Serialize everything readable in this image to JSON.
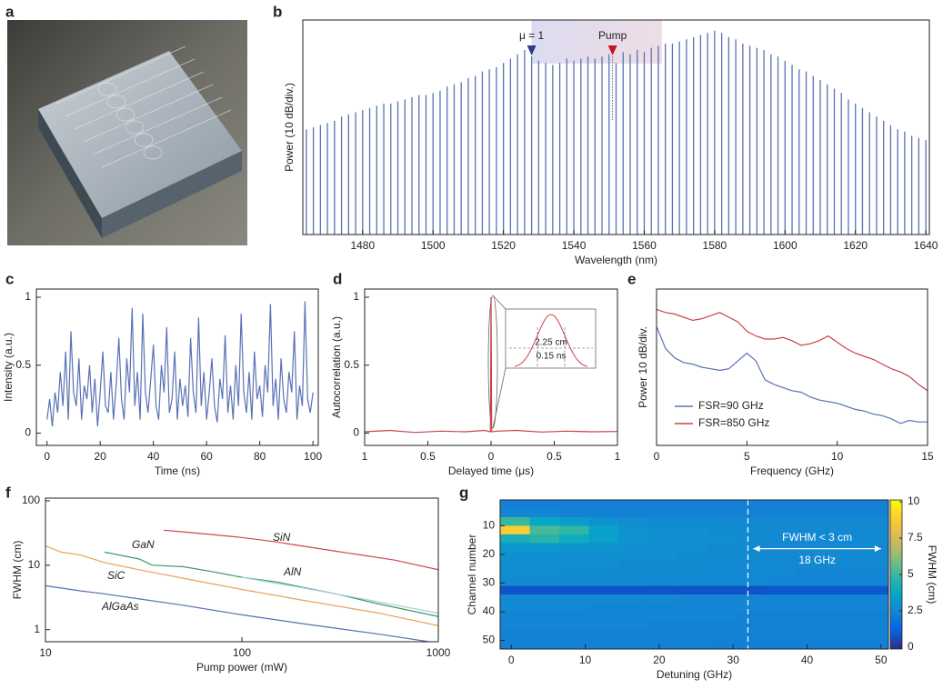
{
  "panel_a": {
    "panel": "a"
  },
  "chart_data": [
    {
      "type": "comb",
      "panel": "b",
      "xlabel": "Wavelength (nm)",
      "ylabel": "Power (10 dB/div.)",
      "color": "#5a72b5",
      "xlim": [
        1463,
        1641
      ],
      "ylim": [
        0,
        10
      ],
      "xticks": [
        1480,
        1500,
        1520,
        1540,
        1560,
        1580,
        1600,
        1620,
        1640
      ],
      "highlight": [
        1528,
        1565
      ],
      "markers": [
        {
          "label": "μ = 1",
          "x": 1528,
          "color": "#2b3990"
        },
        {
          "label": "Pump",
          "x": 1551,
          "color": "#c4161c"
        }
      ],
      "x": [
        1464,
        1466,
        1468,
        1470,
        1472,
        1474,
        1476,
        1478,
        1480,
        1482,
        1484,
        1486,
        1488,
        1490,
        1492,
        1494,
        1496,
        1498,
        1500,
        1502,
        1504,
        1506,
        1508,
        1510,
        1512,
        1514,
        1516,
        1518,
        1520,
        1522,
        1524,
        1526,
        1528,
        1530,
        1532,
        1534,
        1536,
        1538,
        1540,
        1542,
        1544,
        1546,
        1548,
        1550,
        1552,
        1554,
        1556,
        1558,
        1560,
        1562,
        1564,
        1566,
        1568,
        1570,
        1572,
        1574,
        1576,
        1578,
        1580,
        1582,
        1584,
        1586,
        1588,
        1590,
        1592,
        1594,
        1596,
        1598,
        1600,
        1602,
        1604,
        1606,
        1608,
        1610,
        1612,
        1614,
        1616,
        1618,
        1620,
        1622,
        1624,
        1626,
        1628,
        1630,
        1632,
        1634,
        1636,
        1638,
        1640
      ],
      "values": [
        4.9,
        5.0,
        5.1,
        5.2,
        5.3,
        5.5,
        5.6,
        5.7,
        5.8,
        5.9,
        6.0,
        6.1,
        6.1,
        6.2,
        6.3,
        6.4,
        6.5,
        6.5,
        6.6,
        6.7,
        6.9,
        7.0,
        7.1,
        7.3,
        7.4,
        7.6,
        7.7,
        7.8,
        8.0,
        8.2,
        8.4,
        8.6,
        8.3,
        8.1,
        8.0,
        7.9,
        8.0,
        8.2,
        8.1,
        8.2,
        8.3,
        8.2,
        8.3,
        8.4,
        8.0,
        8.5,
        8.4,
        8.6,
        8.5,
        8.7,
        8.8,
        8.9,
        8.9,
        9.0,
        9.1,
        9.2,
        9.3,
        9.4,
        9.5,
        9.4,
        9.2,
        9.1,
        8.9,
        8.8,
        8.7,
        8.6,
        8.4,
        8.3,
        8.1,
        7.9,
        7.7,
        7.6,
        7.4,
        7.2,
        7.0,
        6.8,
        6.6,
        6.3,
        6.1,
        5.9,
        5.7,
        5.5,
        5.3,
        5.1,
        4.9,
        4.8,
        4.6,
        4.5,
        4.4
      ]
    },
    {
      "type": "line",
      "panel": "c",
      "xlabel": "Time (ns)",
      "ylabel": "Intensity (a.u.)",
      "color": "#5a72b5",
      "xlim": [
        -4,
        102
      ],
      "ylim": [
        -0.09,
        1.06
      ],
      "xticks": [
        0,
        20,
        40,
        60,
        80,
        100
      ],
      "yticks": [
        0,
        0.5,
        1
      ],
      "x": [
        0,
        1,
        2,
        3,
        4,
        5,
        6,
        7,
        8,
        9,
        10,
        11,
        12,
        13,
        14,
        15,
        16,
        17,
        18,
        19,
        20,
        21,
        22,
        23,
        24,
        25,
        26,
        27,
        28,
        29,
        30,
        31,
        32,
        33,
        34,
        35,
        36,
        37,
        38,
        39,
        40,
        41,
        42,
        43,
        44,
        45,
        46,
        47,
        48,
        49,
        50,
        51,
        52,
        53,
        54,
        55,
        56,
        57,
        58,
        59,
        60,
        61,
        62,
        63,
        64,
        65,
        66,
        67,
        68,
        69,
        70,
        71,
        72,
        73,
        74,
        75,
        76,
        77,
        78,
        79,
        80,
        81,
        82,
        83,
        84,
        85,
        86,
        87,
        88,
        89,
        90,
        91,
        92,
        93,
        94,
        95,
        96,
        97,
        98,
        99,
        100
      ],
      "values": [
        0.1,
        0.25,
        0.05,
        0.3,
        0.15,
        0.45,
        0.2,
        0.6,
        0.1,
        0.75,
        0.3,
        0.2,
        0.55,
        0.1,
        0.35,
        0.25,
        0.5,
        0.15,
        0.4,
        0.05,
        0.3,
        0.6,
        0.2,
        0.15,
        0.45,
        0.1,
        0.35,
        0.7,
        0.25,
        0.1,
        0.55,
        0.3,
        0.92,
        0.2,
        0.45,
        0.1,
        0.88,
        0.3,
        0.15,
        0.4,
        0.65,
        0.2,
        0.1,
        0.5,
        0.3,
        0.78,
        0.15,
        0.25,
        0.6,
        0.1,
        0.4,
        0.2,
        0.35,
        0.12,
        0.7,
        0.3,
        0.15,
        0.85,
        0.2,
        0.45,
        0.1,
        0.3,
        0.55,
        0.2,
        0.08,
        0.4,
        0.25,
        0.72,
        0.15,
        0.35,
        0.1,
        0.5,
        0.2,
        0.88,
        0.3,
        0.15,
        0.45,
        0.1,
        0.6,
        0.25,
        0.35,
        0.12,
        0.5,
        0.3,
        0.95,
        0.2,
        0.4,
        0.1,
        0.55,
        0.25,
        0.15,
        0.45,
        0.3,
        0.75,
        0.1,
        0.35,
        0.2,
        0.97,
        0.25,
        0.15,
        0.3
      ]
    },
    {
      "type": "line",
      "panel": "d",
      "xlabel": "Delayed time (μs)",
      "ylabel": "Autocorrelation (a.u.)",
      "color": "#c8434c",
      "xlim": [
        -1,
        1
      ],
      "ylim": [
        -0.09,
        1.06
      ],
      "xticks": [
        {
          "value": -1,
          "label": "1"
        },
        {
          "value": -0.5,
          "label": "0.5"
        },
        0,
        0.5,
        1
      ],
      "yticks": [
        0,
        0.5,
        1
      ],
      "annotations": [
        "2.25 cm",
        "0.15 ns"
      ],
      "x": [
        -1,
        -0.8,
        -0.6,
        -0.4,
        -0.2,
        -0.05,
        -0.005,
        0,
        0.005,
        0.05,
        0.2,
        0.4,
        0.6,
        0.8,
        1
      ],
      "values": [
        0.01,
        0.02,
        0.005,
        0.015,
        0.01,
        0.02,
        0.01,
        1,
        0.01,
        0.015,
        0.02,
        0.008,
        0.015,
        0.01,
        0.012
      ]
    },
    {
      "type": "line",
      "panel": "e",
      "xlabel": "Frequency (GHz)",
      "ylabel": "Power 10 dB/div.",
      "legend": "lower left",
      "xlim": [
        0,
        15
      ],
      "ylim": [
        0,
        10
      ],
      "xticks": [
        0,
        5,
        10,
        15
      ],
      "x": [
        0,
        0.5,
        1,
        1.5,
        2,
        2.5,
        3,
        3.5,
        4,
        4.5,
        5,
        5.5,
        6,
        6.5,
        7,
        7.5,
        8,
        8.5,
        9,
        9.5,
        10,
        10.5,
        11,
        11.5,
        12,
        12.5,
        13,
        13.5,
        14,
        14.5,
        15
      ],
      "series": [
        {
          "name": "FSR=90 GHz",
          "color": "#5a72b5",
          "values": [
            7.6,
            6.2,
            5.6,
            5.3,
            5.2,
            5.0,
            4.9,
            4.8,
            4.9,
            5.4,
            5.9,
            5.4,
            4.2,
            3.9,
            3.7,
            3.5,
            3.4,
            3.1,
            2.9,
            2.8,
            2.7,
            2.5,
            2.3,
            2.2,
            2.0,
            1.9,
            1.7,
            1.4,
            1.6,
            1.5,
            1.5
          ]
        },
        {
          "name": "FSR=850 GHz",
          "color": "#c8434c",
          "values": [
            8.7,
            8.5,
            8.4,
            8.2,
            8.0,
            8.1,
            8.3,
            8.5,
            8.2,
            7.9,
            7.3,
            7.0,
            6.8,
            6.8,
            6.9,
            6.7,
            6.4,
            6.5,
            6.7,
            7.0,
            6.6,
            6.2,
            5.9,
            5.7,
            5.5,
            5.2,
            4.9,
            4.7,
            4.4,
            3.9,
            3.5
          ]
        }
      ]
    },
    {
      "type": "line",
      "panel": "f",
      "xlabel": "Pump power (mW)",
      "ylabel": "FWHM (cm)",
      "xlog": true,
      "ylog": true,
      "xlim": [
        10,
        1000
      ],
      "ylim": [
        0.65,
        110
      ],
      "xticks": [
        10,
        100,
        1000
      ],
      "yticks": [
        1,
        10,
        100
      ],
      "series": [
        {
          "name": "SiN",
          "color": "#d0454f",
          "x": [
            40,
            50,
            70,
            100,
            150,
            200,
            300,
            400,
            600,
            1000
          ],
          "values": [
            35,
            33,
            30,
            27,
            23,
            20,
            16.5,
            14.5,
            12,
            8.5
          ]
        },
        {
          "name": "GaN",
          "color": "#3a9a6a",
          "x": [
            20,
            30,
            35,
            50,
            70,
            100,
            150,
            200,
            300,
            500,
            1000
          ],
          "values": [
            16,
            12.5,
            10,
            9.5,
            8,
            6.5,
            5.5,
            4.6,
            3.6,
            2.5,
            1.6
          ]
        },
        {
          "name": "AlN",
          "color": "#a7cde0",
          "x": [
            100,
            200,
            500,
            1000
          ],
          "values": [
            6.5,
            4.5,
            2.7,
            1.8
          ]
        },
        {
          "name": "SiC",
          "color": "#e9a15a",
          "x": [
            10,
            12,
            15,
            20,
            30,
            50,
            100,
            200,
            500,
            1000
          ],
          "values": [
            20,
            16,
            14.5,
            11,
            8.5,
            6.3,
            4.2,
            2.9,
            1.8,
            1.15
          ]
        },
        {
          "name": "AlGaAs",
          "color": "#5472b0",
          "x": [
            10,
            15,
            20,
            30,
            50,
            100,
            200,
            500,
            1000
          ],
          "values": [
            4.8,
            4.0,
            3.6,
            3.0,
            2.4,
            1.7,
            1.25,
            0.85,
            0.62
          ]
        }
      ]
    },
    {
      "type": "heatmap",
      "panel": "g",
      "xlabel": "Detuning (GHz)",
      "ylabel": "Channel number",
      "colorbar_label": "FWHM (cm)",
      "xlim": [
        -1.5,
        51
      ],
      "ylim": [
        53,
        1
      ],
      "xticks": [
        0,
        10,
        20,
        30,
        40,
        50
      ],
      "yticks": [
        10,
        20,
        30,
        40,
        50
      ],
      "clim": [
        0,
        10
      ],
      "cticks": [
        0,
        2.5,
        5,
        7.5,
        10
      ],
      "colormap": [
        "#352a87",
        "#0363e1",
        "#1485d4",
        "#06a7c6",
        "#38b99e",
        "#92bf73",
        "#d9ba56",
        "#fcce2e",
        "#f9fb0e"
      ],
      "vline": 32,
      "arrow": {
        "x": [
          32,
          50
        ],
        "y": 18
      },
      "annotations": [
        "FWHM < 3 cm",
        "18 GHz"
      ],
      "x_edges": [
        -1.5,
        2.5,
        6.5,
        10.5,
        14.5,
        18.5,
        22.5,
        26.5,
        30.5,
        34.5,
        38.5,
        42.5,
        46.5,
        51
      ],
      "y_edges": [
        1,
        4,
        7,
        10,
        13,
        16,
        19,
        22,
        25,
        28,
        31,
        34,
        37,
        40,
        43,
        46,
        49,
        53
      ],
      "z": [
        [
          2.3,
          2.3,
          2.3,
          2.3,
          2.3,
          2.3,
          2.3,
          2.3,
          2.3,
          2.3,
          2.3,
          2.3,
          2.3
        ],
        [
          2.5,
          2.5,
          2.4,
          2.4,
          2.4,
          2.4,
          2.4,
          2.4,
          2.4,
          2.4,
          2.4,
          2.4,
          2.4
        ],
        [
          5.0,
          3.8,
          3.4,
          3.0,
          2.8,
          2.7,
          2.7,
          2.7,
          2.6,
          2.6,
          2.6,
          2.6,
          2.6
        ],
        [
          8.6,
          5.2,
          4.8,
          3.6,
          3.0,
          2.8,
          2.8,
          2.7,
          2.7,
          2.6,
          2.6,
          2.6,
          2.6
        ],
        [
          4.2,
          4.6,
          4.0,
          3.5,
          3.0,
          2.9,
          2.8,
          2.8,
          2.7,
          2.7,
          2.6,
          2.6,
          2.6
        ],
        [
          3.2,
          3.2,
          3.1,
          3.0,
          2.9,
          2.8,
          2.8,
          2.7,
          2.7,
          2.6,
          2.6,
          2.6,
          2.6
        ],
        [
          2.9,
          2.9,
          2.9,
          2.8,
          2.8,
          2.8,
          2.7,
          2.7,
          2.7,
          2.6,
          2.6,
          2.6,
          2.6
        ],
        [
          2.8,
          2.8,
          2.8,
          2.8,
          2.7,
          2.7,
          2.7,
          2.7,
          2.6,
          2.6,
          2.6,
          2.6,
          2.6
        ],
        [
          2.8,
          2.8,
          2.7,
          2.7,
          2.7,
          2.7,
          2.7,
          2.6,
          2.6,
          2.6,
          2.5,
          2.5,
          2.5
        ],
        [
          2.7,
          2.7,
          2.7,
          2.7,
          2.7,
          2.6,
          2.6,
          2.6,
          2.6,
          2.5,
          2.5,
          2.5,
          2.5
        ],
        [
          0.9,
          0.9,
          0.9,
          0.9,
          0.9,
          0.9,
          0.9,
          0.9,
          0.9,
          1.0,
          1.0,
          1.0,
          1.0
        ],
        [
          2.6,
          2.6,
          2.6,
          2.6,
          2.6,
          2.6,
          2.5,
          2.5,
          2.5,
          2.5,
          2.5,
          2.5,
          2.5
        ],
        [
          2.6,
          2.6,
          2.6,
          2.5,
          2.5,
          2.5,
          2.5,
          2.5,
          2.5,
          2.5,
          2.5,
          2.5,
          2.5
        ],
        [
          2.5,
          2.5,
          2.5,
          2.5,
          2.5,
          2.5,
          2.5,
          2.5,
          2.4,
          2.4,
          2.4,
          2.4,
          2.4
        ],
        [
          2.5,
          2.5,
          2.5,
          2.5,
          2.5,
          2.4,
          2.4,
          2.4,
          2.4,
          2.4,
          2.4,
          2.4,
          2.4
        ],
        [
          2.4,
          2.4,
          2.4,
          2.4,
          2.4,
          2.4,
          2.4,
          2.4,
          2.4,
          2.4,
          2.4,
          2.4,
          2.4
        ],
        [
          2.4,
          2.4,
          2.4,
          2.4,
          2.4,
          2.4,
          2.4,
          2.3,
          2.3,
          2.3,
          2.3,
          2.3,
          2.3
        ]
      ]
    }
  ]
}
